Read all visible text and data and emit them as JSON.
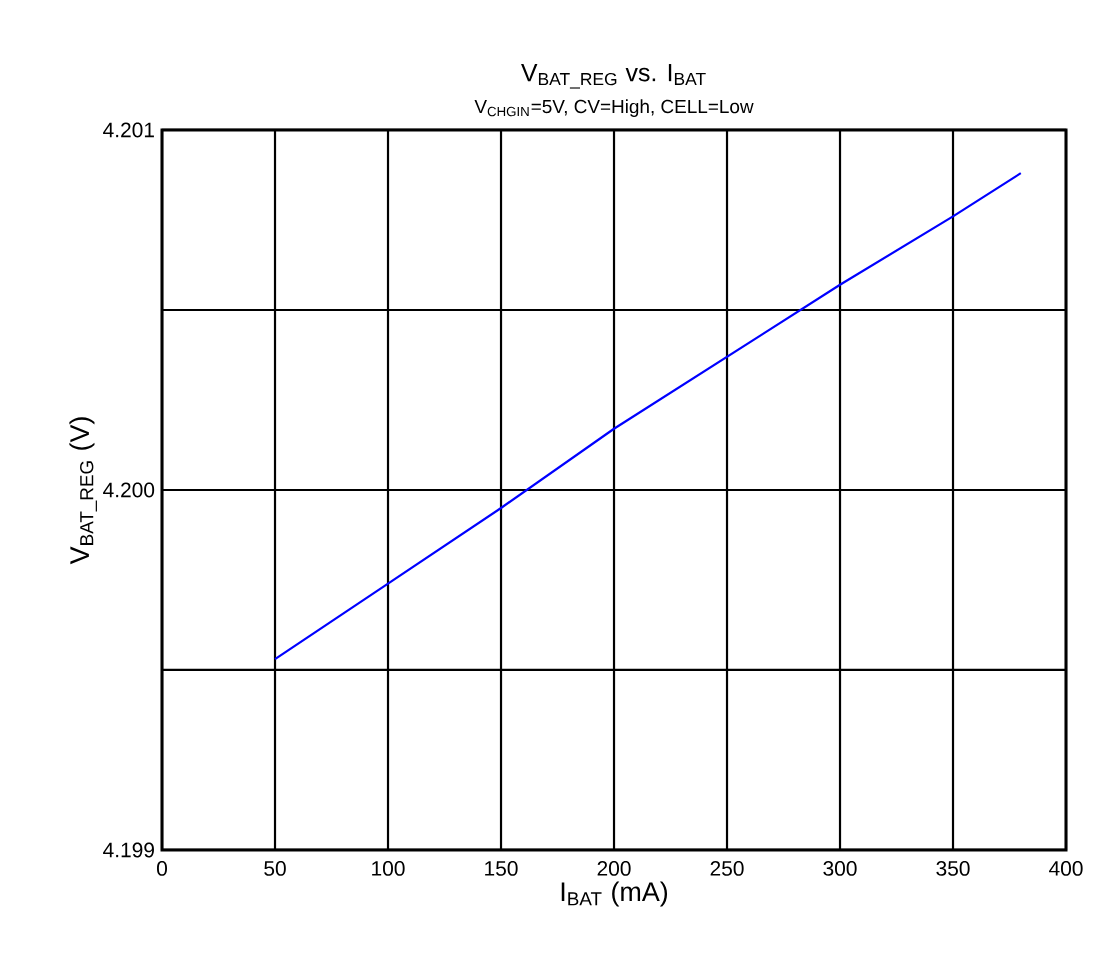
{
  "chart_data": {
    "type": "line",
    "title": "V$_{BAT_REG}$ vs. I$_{BAT}$",
    "subtitle": "V$_{CHGIN}$=5V, CV=High, CELL=Low",
    "xlabel": "I$_{BAT}$ (mA)",
    "ylabel": "V$_{BAT_REG}$ (V)",
    "x": [
      50,
      100,
      150,
      200,
      250,
      300,
      350,
      380
    ],
    "series": [
      {
        "color": "#0000ff",
        "values": [
          4.19953,
          4.19974,
          4.19995,
          4.20017,
          4.20037,
          4.20057,
          4.20076,
          4.20088
        ]
      }
    ],
    "xlim": [
      0,
      400
    ],
    "xticks": [
      0,
      50,
      100,
      150,
      200,
      250,
      300,
      350,
      400
    ],
    "ylim": [
      4.199,
      4.201
    ],
    "yticks": [
      4.199,
      {
        "value": 4.1995,
        "label": null
      },
      {
        "value": 4.2,
        "label": "4.200"
      },
      {
        "value": 4.2005,
        "label": null
      },
      4.201
    ],
    "grid": true
  }
}
